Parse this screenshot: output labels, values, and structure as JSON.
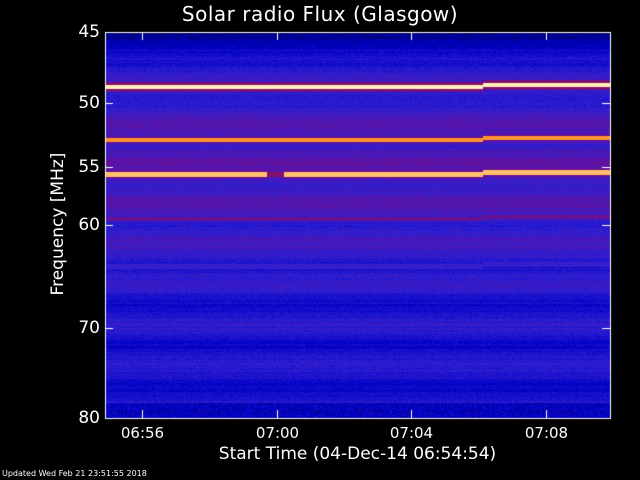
{
  "chart_data": {
    "type": "heatmap",
    "title": "Solar radio Flux (Glasgow)",
    "xlabel": "Start Time (04-Dec-14 06:54:54)",
    "ylabel": "Frequency [MHz]",
    "x_ticks": [
      "06:56",
      "07:00",
      "07:04",
      "07:08"
    ],
    "x_tick_minutes": [
      1.1,
      5.1,
      9.1,
      13.1
    ],
    "x_range_minutes": [
      0,
      15
    ],
    "y_ticks": [
      45,
      50,
      55,
      60,
      70,
      80
    ],
    "ylim": [
      45,
      80
    ],
    "y_scale": "log",
    "colormap": [
      "#000040",
      "#0000c8",
      "#3020d0",
      "#6010a0",
      "#a01040",
      "#ff3000",
      "#ff9a30",
      "#fff0c0"
    ],
    "emission_bands_mhz": [
      {
        "freq": 48.8,
        "intensity": 1.0
      },
      {
        "freq": 52.8,
        "intensity": 0.85
      },
      {
        "freq": 55.6,
        "intensity": 0.92
      },
      {
        "freq": 59.4,
        "intensity": 0.45
      },
      {
        "freq": 63.8,
        "intensity": 0.3
      }
    ],
    "band_gap_minutes": [
      4.8,
      5.3
    ],
    "step_change_minute": 11.2
  },
  "footer": {
    "updated": "Updated Wed Feb 21 23:51:55 2018"
  }
}
